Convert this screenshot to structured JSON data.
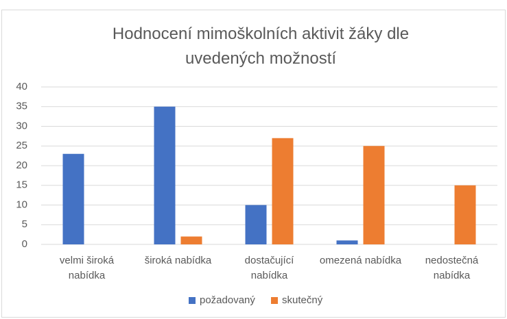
{
  "chart_data": {
    "type": "bar",
    "title": "Hodnocení mimoškolních aktivit žáky dle uvedených možností",
    "categories": [
      "velmi široká nabídka",
      "široká nabídka",
      "dostačující nabídka",
      "omezená nabídka",
      "nedostečná nabídka"
    ],
    "series": [
      {
        "name": "požadovaný",
        "color": "#4472c4",
        "values": [
          23,
          35,
          10,
          1,
          0
        ]
      },
      {
        "name": "skutečný",
        "color": "#ed7d31",
        "values": [
          0,
          2,
          27,
          25,
          15
        ]
      }
    ],
    "ylim": [
      0,
      40
    ],
    "yticks": [
      0,
      5,
      10,
      15,
      20,
      25,
      30,
      35,
      40
    ],
    "grid": true,
    "legend": "bottom"
  }
}
